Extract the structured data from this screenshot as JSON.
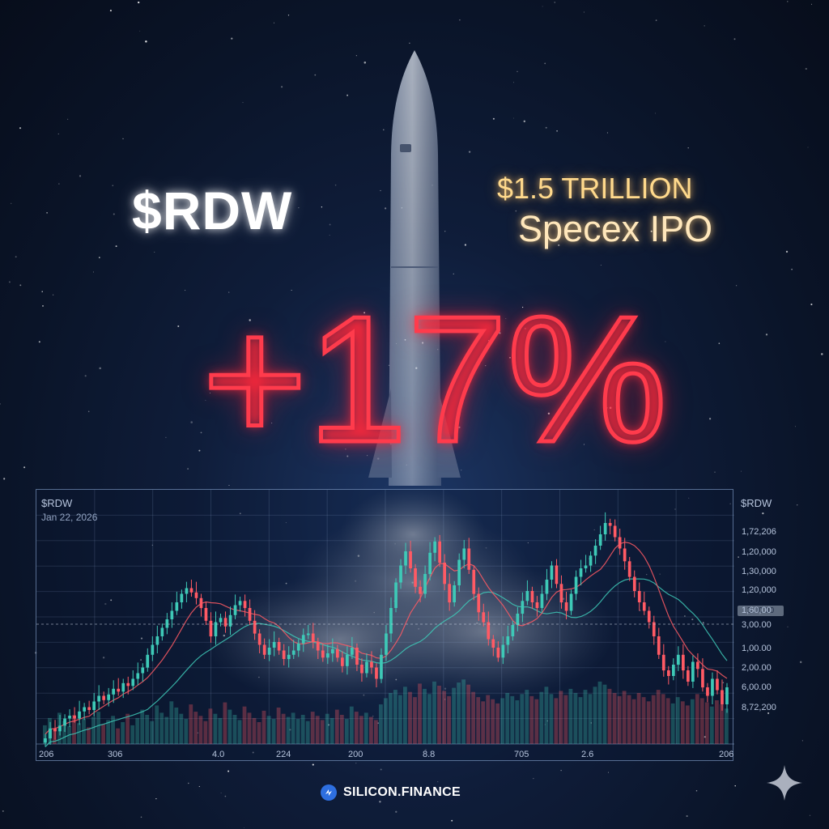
{
  "ticker": "$RDW",
  "headline": {
    "line1": "$1.5 TRILLION",
    "line2": "Specex IPO"
  },
  "change_text": "+17%",
  "brand": {
    "name": "SILICON.FINANCE",
    "icon": "silicon-finance-logo-icon"
  },
  "sparkle_icon": "sparkle-icon",
  "colors": {
    "up": "#3ec9b7",
    "down": "#ff5a64",
    "headline": "#ffd98c",
    "percent_glow": "#ff3b4c",
    "ma_red": "#ff5a64",
    "ma_teal": "#3ec9b7"
  },
  "chart_data": {
    "type": "candlestick",
    "symbol": "$RDW",
    "date": "Jan 22, 2026",
    "right_symbol": "$RDW",
    "price_tag": "3.00.00",
    "y_tick_labels": [
      "1,72,206",
      "1,20,000",
      "1,30,000",
      "1,20,000",
      "1,60,00",
      "3,00.00",
      "1,00.00",
      "2,00.00",
      "6,00.00",
      "8,72,200"
    ],
    "x_tick_labels": [
      "206",
      "306",
      "4.0",
      "224",
      "200",
      "8.8",
      "705",
      "2.6",
      "206"
    ],
    "grid": true,
    "candle_closes": [
      36,
      43,
      41,
      45,
      50,
      52,
      50,
      55,
      58,
      56,
      62,
      66,
      63,
      67,
      71,
      69,
      75,
      73,
      78,
      82,
      86,
      95,
      102,
      108,
      114,
      120,
      126,
      132,
      138,
      142,
      139,
      135,
      128,
      119,
      108,
      118,
      121,
      115,
      123,
      130,
      133,
      128,
      119,
      110,
      102,
      95,
      100,
      104,
      98,
      92,
      95,
      98,
      103,
      109,
      110,
      104,
      98,
      93,
      96,
      99,
      93,
      87,
      95,
      100,
      88,
      82,
      90,
      86,
      78,
      95,
      110,
      128,
      146,
      158,
      168,
      156,
      143,
      138,
      152,
      167,
      175,
      160,
      145,
      132,
      144,
      162,
      170,
      155,
      138,
      125,
      118,
      106,
      100,
      93,
      102,
      108,
      116,
      124,
      133,
      140,
      132,
      128,
      138,
      148,
      158,
      145,
      132,
      126,
      138,
      150,
      156,
      158,
      165,
      172,
      180,
      188,
      186,
      178,
      170,
      161,
      150,
      140,
      132,
      126,
      118,
      108,
      95,
      84,
      80,
      88,
      95,
      84,
      76,
      90,
      85,
      72,
      66,
      78,
      70,
      60,
      72
    ],
    "volume": [
      18,
      25,
      14,
      30,
      22,
      17,
      28,
      20,
      24,
      16,
      26,
      31,
      19,
      23,
      27,
      15,
      21,
      29,
      18,
      25,
      33,
      28,
      22,
      37,
      30,
      26,
      41,
      35,
      29,
      24,
      38,
      31,
      27,
      22,
      34,
      29,
      25,
      40,
      33,
      28,
      23,
      36,
      30,
      25,
      21,
      32,
      27,
      24,
      35,
      29,
      26,
      30,
      24,
      28,
      22,
      31,
      27,
      23,
      29,
      25,
      33,
      28,
      24,
      36,
      31,
      27,
      30,
      26,
      23,
      38,
      44,
      49,
      52,
      47,
      55,
      50,
      45,
      58,
      53,
      48,
      60,
      56,
      51,
      46,
      54,
      59,
      62,
      57,
      50,
      45,
      41,
      47,
      43,
      39,
      44,
      49,
      46,
      42,
      48,
      52,
      46,
      43,
      50,
      55,
      48,
      44,
      51,
      47,
      53,
      49,
      45,
      52,
      48,
      55,
      60,
      57,
      53,
      49,
      46,
      51,
      47,
      43,
      49,
      45,
      41,
      47,
      52,
      48,
      44,
      39,
      45,
      41,
      37,
      43,
      48,
      44,
      40,
      36,
      42,
      38,
      34
    ]
  }
}
